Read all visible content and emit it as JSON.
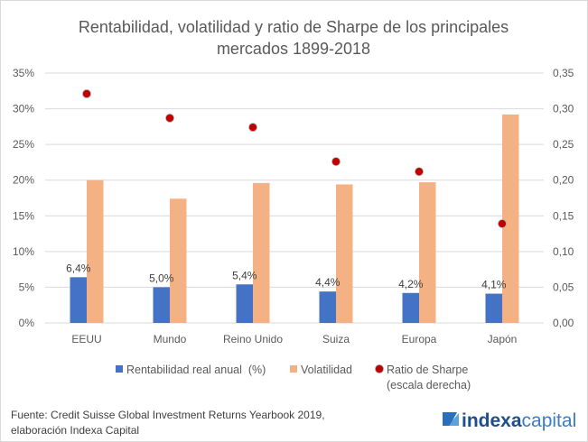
{
  "chart_data": {
    "type": "bar",
    "title": "Rentabilidad, volatilidad y ratio de Sharpe de los principales mercados 1899-2018",
    "title_lines": [
      "Rentabilidad, volatilidad y ratio de Sharpe de los principales",
      "mercados 1899-2018"
    ],
    "categories": [
      "EEUU",
      "Mundo",
      "Reino Unido",
      "Suiza",
      "Europa",
      "Japón"
    ],
    "series": [
      {
        "name": "Rentabilidad real anual  (%)",
        "kind": "bar",
        "axis": "left",
        "color": "#4472C4",
        "values": [
          6.4,
          5.0,
          5.4,
          4.4,
          4.2,
          4.1
        ],
        "labels": [
          "6,4%",
          "5,0%",
          "5,4%",
          "4,4%",
          "4,2%",
          "4,1%"
        ]
      },
      {
        "name": "Volatilidad",
        "kind": "bar",
        "axis": "left",
        "color": "#F4B183",
        "values": [
          20.0,
          17.4,
          19.6,
          19.4,
          19.7,
          29.2
        ]
      },
      {
        "name": "Ratio de Sharpe",
        "name_line2": "(escala derecha)",
        "kind": "scatter",
        "axis": "right",
        "color": "#C00000",
        "values": [
          0.321,
          0.287,
          0.274,
          0.226,
          0.212,
          0.139
        ]
      }
    ],
    "y_left": {
      "ylim": [
        0,
        35
      ],
      "ticks": [
        "0%",
        "5%",
        "10%",
        "15%",
        "20%",
        "25%",
        "30%",
        "35%"
      ]
    },
    "y_right": {
      "ylim": [
        0,
        0.35
      ],
      "ticks": [
        "0,00",
        "0,05",
        "0,10",
        "0,15",
        "0,20",
        "0,25",
        "0,30",
        "0,35"
      ]
    },
    "grid": true,
    "legend": "bottom"
  },
  "footer": {
    "source_line1": "Fuente: Credit Suisse Global Investment Returns Yearbook 2019,",
    "source_line2": "elaboración Indexa Capital",
    "logo_text_bold": "indexa",
    "logo_text_light": "capital"
  }
}
